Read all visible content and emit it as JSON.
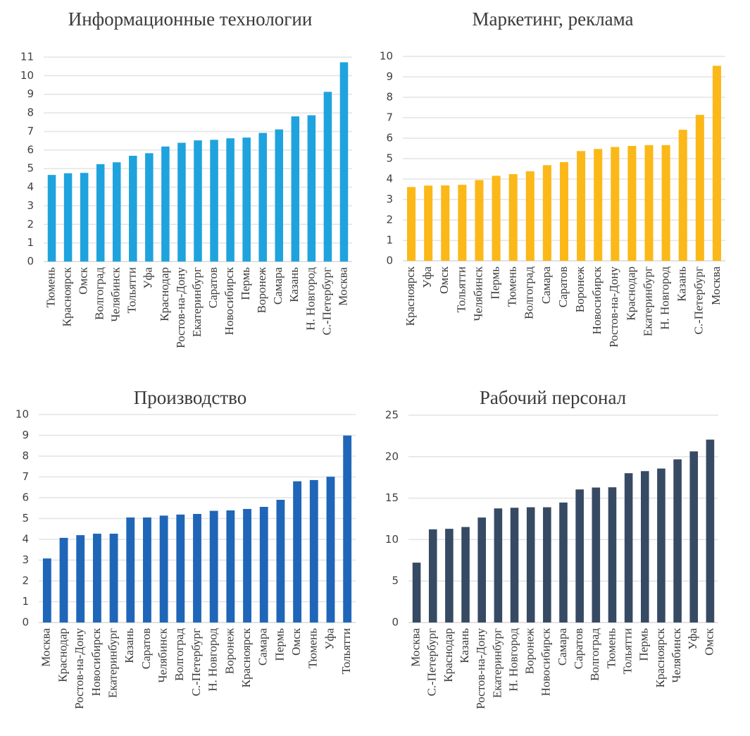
{
  "chart_data": [
    {
      "type": "bar",
      "title": "Информационные технологии",
      "xlabel": "",
      "ylabel": "",
      "ylim": [
        0,
        11
      ],
      "yticks": [
        0,
        1,
        2,
        3,
        4,
        5,
        6,
        7,
        8,
        9,
        10,
        11
      ],
      "grid": true,
      "legend": "none",
      "color": "#1FA3DE",
      "categories": [
        "Тюмень",
        "Красноярск",
        "Омск",
        "Волгоград",
        "Челябинск",
        "Тольятти",
        "Уфа",
        "Краснодар",
        "Ростов-на-Дону",
        "Екатеринбург",
        "Саратов",
        "Новосибирск",
        "Пермь",
        "Воронеж",
        "Самара",
        "Казань",
        "Н. Новгород",
        "С.-Петербург",
        "Москва"
      ],
      "values": [
        4.66,
        4.75,
        4.77,
        5.24,
        5.34,
        5.69,
        5.83,
        6.19,
        6.39,
        6.52,
        6.55,
        6.63,
        6.67,
        6.92,
        7.11,
        7.81,
        7.87,
        9.13,
        10.72
      ]
    },
    {
      "type": "bar",
      "title": "Маркетинг, реклама",
      "xlabel": "",
      "ylabel": "",
      "ylim": [
        0,
        10
      ],
      "yticks": [
        0,
        1,
        2,
        3,
        4,
        5,
        6,
        7,
        8,
        9,
        10
      ],
      "grid": true,
      "legend": "none",
      "color": "#FBB818",
      "categories": [
        "Красноярск",
        "Уфа",
        "Омск",
        "Тольятти",
        "Челябинск",
        "Пермь",
        "Тюмень",
        "Волгоград",
        "Самара",
        "Саратов",
        "Воронеж",
        "Новосибирск",
        "Ростов-на-Дону",
        "Краснодар",
        "Екатеринбург",
        "Н. Новгород",
        "Казань",
        "С.-Петербург",
        "Москва"
      ],
      "values": [
        3.61,
        3.68,
        3.69,
        3.72,
        3.95,
        4.16,
        4.24,
        4.38,
        4.68,
        4.83,
        5.37,
        5.47,
        5.57,
        5.62,
        5.66,
        5.66,
        6.41,
        7.14,
        9.54
      ]
    },
    {
      "type": "bar",
      "title": "Производство",
      "xlabel": "",
      "ylabel": "",
      "ylim": [
        0,
        10
      ],
      "yticks": [
        0,
        1,
        2,
        3,
        4,
        5,
        6,
        7,
        8,
        9,
        10
      ],
      "grid": true,
      "legend": "none",
      "color": "#1F66B8",
      "categories": [
        "Москва",
        "Краснодар",
        "Ростов-на-Дону",
        "Новосибирск",
        "Екатеринбург",
        "Казань",
        "Саратов",
        "Челябинск",
        "Волгоград",
        "С.-Петербург",
        "Н. Новгород",
        "Воронеж",
        "Красноярск",
        "Самара",
        "Пермь",
        "Омск",
        "Тюмень",
        "Уфа",
        "Тольятти"
      ],
      "values": [
        3.08,
        4.07,
        4.2,
        4.27,
        4.27,
        5.05,
        5.05,
        5.14,
        5.19,
        5.22,
        5.37,
        5.39,
        5.46,
        5.56,
        5.9,
        6.79,
        6.85,
        7.01,
        8.99
      ]
    },
    {
      "type": "bar",
      "title": "Рабочий персонал",
      "xlabel": "",
      "ylabel": "",
      "ylim": [
        0,
        25
      ],
      "yticks": [
        0,
        5,
        10,
        15,
        20,
        25
      ],
      "grid": true,
      "legend": "none",
      "color": "#374A63",
      "categories": [
        "Москва",
        "С.-Петербург",
        "Краснодар",
        "Казань",
        "Ростов-на-Дону",
        "Екатеринбург",
        "Н. Новгород",
        "Воронеж",
        "Новосибирск",
        "Самара",
        "Саратов",
        "Волгоград",
        "Тюмень",
        "Тольятти",
        "Пермь",
        "Красноярск",
        "Челябинск",
        "Уфа",
        "Омск"
      ],
      "values": [
        7.22,
        11.24,
        11.3,
        11.52,
        12.66,
        13.76,
        13.84,
        13.9,
        13.9,
        14.47,
        16.05,
        16.28,
        16.31,
        18.01,
        18.26,
        18.57,
        19.68,
        20.64,
        22.06
      ]
    }
  ]
}
